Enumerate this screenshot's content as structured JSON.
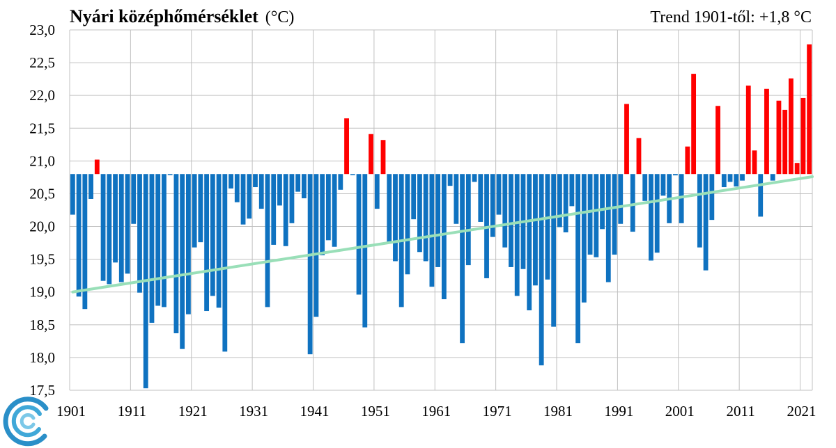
{
  "chart_data": {
    "type": "bar",
    "title": "Nyári középhőmérséklet",
    "title_unit": "(°C)",
    "annotation": "Trend 1901-től: +1,8 °C",
    "baseline": 20.8,
    "ylim": [
      17.5,
      23.0
    ],
    "y_ticks": [
      "23,0",
      "22,5",
      "22,0",
      "21,5",
      "21,0",
      "20,5",
      "20,0",
      "19,5",
      "19,0",
      "18,5",
      "18,0",
      "17,5"
    ],
    "x_ticks": [
      "1901",
      "1911",
      "1921",
      "1931",
      "1941",
      "1951",
      "1961",
      "1971",
      "1981",
      "1991",
      "2001",
      "2011",
      "2021"
    ],
    "grid": true,
    "colors": {
      "below": "#0f72c0",
      "above": "#ff0000",
      "trend": "#99dfb8"
    },
    "trend": {
      "from_year": 1901,
      "from_value": 19.0,
      "to_year": 2022,
      "to_value": 20.76
    },
    "series": [
      {
        "x": [
          1901,
          1902,
          1903,
          1904,
          1905,
          1906,
          1907,
          1908,
          1909,
          1910,
          1911,
          1912,
          1913,
          1914,
          1915,
          1916,
          1917,
          1918,
          1919,
          1920,
          1921,
          1922,
          1923,
          1924,
          1925,
          1926,
          1927,
          1928,
          1929,
          1930,
          1931,
          1932,
          1933,
          1934,
          1935,
          1936,
          1937,
          1938,
          1939,
          1940,
          1941,
          1942,
          1943,
          1944,
          1945,
          1946,
          1947,
          1948,
          1949,
          1950,
          1951,
          1952,
          1953,
          1954,
          1955,
          1956,
          1957,
          1958,
          1959,
          1960,
          1961,
          1962,
          1963,
          1964,
          1965,
          1966,
          1967,
          1968,
          1969,
          1970,
          1971,
          1972,
          1973,
          1974,
          1975,
          1976,
          1977,
          1978,
          1979,
          1980,
          1981,
          1982,
          1983,
          1984,
          1985,
          1986,
          1987,
          1988,
          1989,
          1990,
          1991,
          1992,
          1993,
          1994,
          1995,
          1996,
          1997,
          1998,
          1999,
          2000,
          2001,
          2002,
          2003,
          2004,
          2005,
          2006,
          2007,
          2008,
          2009,
          2010,
          2011,
          2012,
          2013,
          2014,
          2015,
          2016,
          2017,
          2018,
          2019,
          2020,
          2021,
          2022
        ],
        "values": [
          20.18,
          18.93,
          18.74,
          20.42,
          21.02,
          19.17,
          19.12,
          19.45,
          19.15,
          19.28,
          20.04,
          18.99,
          17.53,
          18.53,
          18.79,
          18.77,
          20.8,
          18.37,
          18.13,
          18.66,
          19.68,
          19.76,
          18.71,
          18.94,
          18.76,
          18.09,
          20.58,
          20.37,
          20.03,
          20.12,
          20.6,
          20.27,
          18.77,
          19.72,
          20.32,
          19.7,
          20.05,
          20.53,
          20.43,
          18.05,
          18.62,
          19.56,
          19.79,
          19.69,
          20.56,
          21.65,
          20.8,
          18.96,
          18.46,
          21.41,
          20.27,
          21.32,
          19.76,
          19.47,
          18.77,
          19.27,
          20.11,
          19.61,
          19.47,
          19.08,
          19.38,
          18.89,
          20.62,
          20.04,
          18.22,
          19.41,
          20.68,
          20.07,
          19.21,
          19.84,
          20.18,
          19.68,
          19.38,
          18.94,
          19.35,
          18.72,
          19.1,
          17.88,
          19.19,
          18.47,
          19.99,
          19.91,
          20.31,
          18.22,
          18.84,
          19.57,
          19.53,
          19.96,
          19.15,
          19.57,
          20.04,
          21.87,
          19.92,
          21.35,
          20.39,
          19.48,
          19.6,
          20.47,
          20.05,
          20.78,
          20.05,
          21.22,
          22.33,
          19.68,
          19.33,
          20.1,
          21.84,
          20.6,
          20.68,
          20.61,
          20.7,
          22.15,
          21.16,
          20.15,
          22.1,
          20.7,
          21.92,
          21.78,
          22.26,
          20.97,
          21.96,
          22.78
        ]
      }
    ]
  }
}
